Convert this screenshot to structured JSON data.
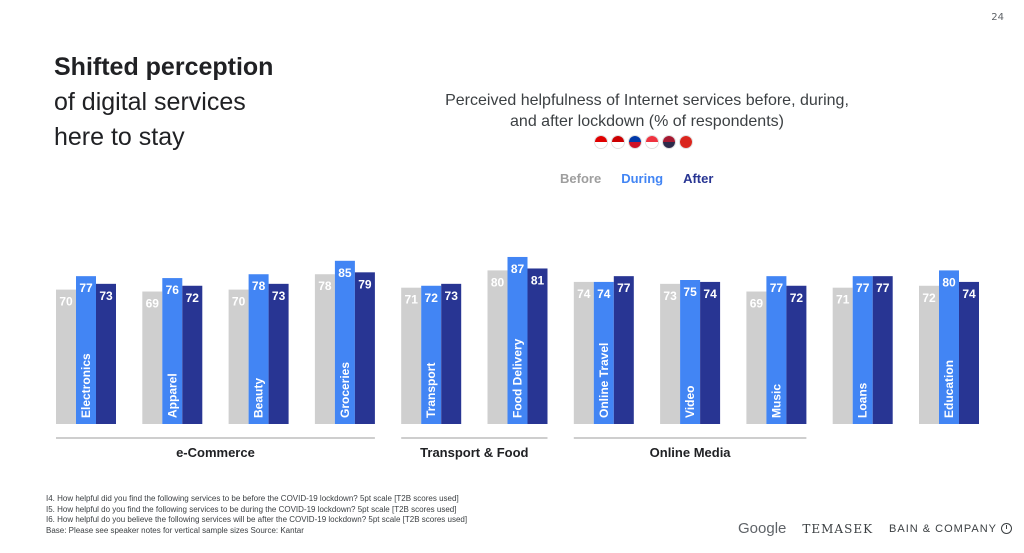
{
  "page_number": "24",
  "headline": {
    "bold": "Shifted perception",
    "line2": "of digital services",
    "line3": "here to stay"
  },
  "chart_title": {
    "line1": "Perceived helpfulness of Internet services before, during,",
    "line2": "and after lockdown (% of respondents)"
  },
  "flags": [
    {
      "name": "indonesia-flag-icon",
      "top": "#e00000",
      "bottom": "#ffffff"
    },
    {
      "name": "malaysia-flag-icon",
      "top": "#cc0001",
      "bottom": "#ffffff"
    },
    {
      "name": "philippines-flag-icon",
      "top": "#0038a8",
      "bottom": "#ce1126"
    },
    {
      "name": "singapore-flag-icon",
      "top": "#ef3340",
      "bottom": "#ffffff"
    },
    {
      "name": "thailand-flag-icon",
      "top": "#a51931",
      "bottom": "#2d2a4a"
    },
    {
      "name": "vietnam-flag-icon",
      "top": "#da251d",
      "bottom": "#da251d"
    }
  ],
  "colors": {
    "before": "#cfcfcf",
    "during": "#4285f4",
    "after": "#283593",
    "before_text": "#9e9e9e"
  },
  "chart_data": {
    "type": "bar",
    "categories": [
      "Electronics",
      "Apparel",
      "Beauty",
      "Groceries",
      "Transport",
      "Food Delivery",
      "Online Travel",
      "Video",
      "Music",
      "Loans",
      "Education"
    ],
    "series": [
      {
        "name": "Before",
        "values": [
          70,
          69,
          70,
          78,
          71,
          80,
          74,
          73,
          69,
          71,
          72
        ]
      },
      {
        "name": "During",
        "values": [
          77,
          76,
          78,
          85,
          72,
          87,
          74,
          75,
          77,
          77,
          80
        ]
      },
      {
        "name": "After",
        "values": [
          73,
          72,
          73,
          79,
          73,
          81,
          77,
          74,
          72,
          77,
          74
        ]
      }
    ],
    "groups": [
      {
        "label": "e-Commerce",
        "categories": [
          "Electronics",
          "Apparel",
          "Beauty",
          "Groceries"
        ]
      },
      {
        "label": "Transport & Food",
        "categories": [
          "Transport",
          "Food Delivery"
        ]
      },
      {
        "label": "Online Media",
        "categories": [
          "Online Travel",
          "Video",
          "Music"
        ]
      }
    ],
    "ylim": [
      0,
      100
    ],
    "legend_position": "top",
    "grid": false
  },
  "footnotes": [
    "I4. How helpful did you find the following services to be before the COVID-19 lockdown? 5pt scale [T2B scores used]",
    "I5. How helpful do you find the following services to be during the COVID-19 lockdown? 5pt scale [T2B scores used]",
    "I6. How helpful do you believe the following services will be after the COVID-19 lockdown? 5pt scale [T2B scores used]",
    "Base: Please see speaker notes for vertical sample sizes Source: Kantar"
  ],
  "logos": {
    "google": "Google",
    "temasek": "TEMASEK",
    "bain": "BAIN & COMPANY"
  }
}
